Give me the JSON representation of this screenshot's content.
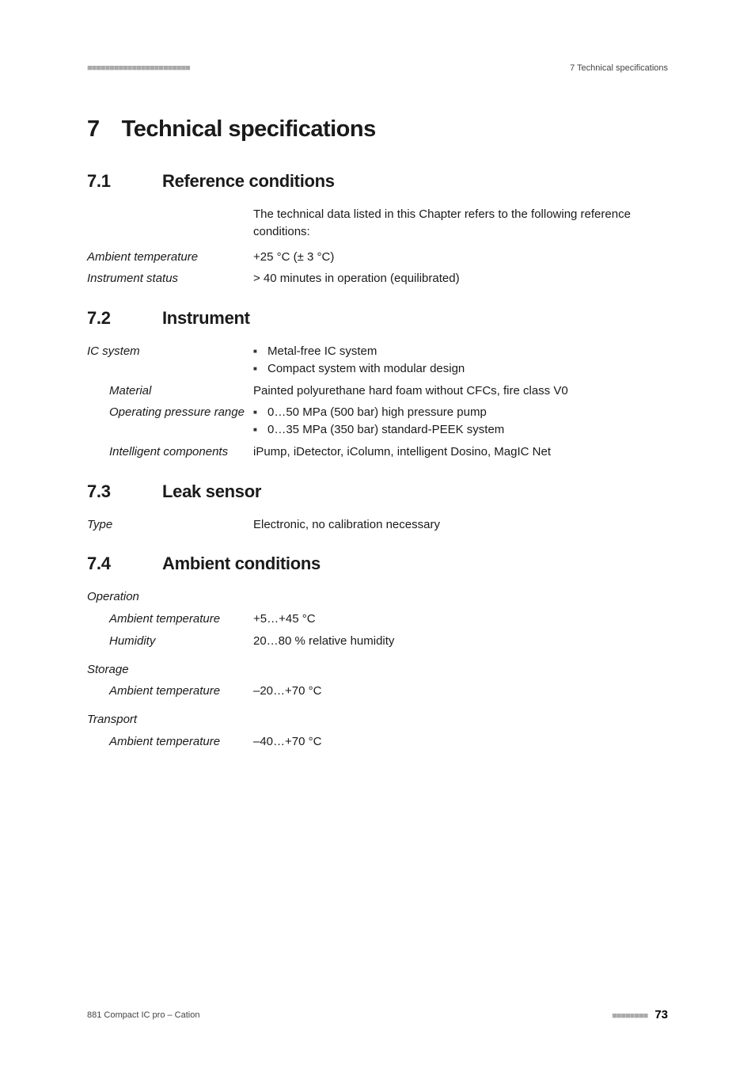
{
  "header": {
    "dots": "■■■■■■■■■■■■■■■■■■■■■■■",
    "right": "7 Technical specifications"
  },
  "chapter": {
    "num": "7",
    "title": "Technical specifications"
  },
  "sections": {
    "s1": {
      "num": "7.1",
      "title": "Reference conditions",
      "intro": "The technical data listed in this Chapter refers to the following reference conditions:",
      "rows": {
        "ambient_temp": {
          "label": "Ambient temperature",
          "value": "+25 °C (± 3 °C)"
        },
        "instr_status": {
          "label": "Instrument status",
          "value": "> 40 minutes in operation (equilibrated)"
        }
      }
    },
    "s2": {
      "num": "7.2",
      "title": "Instrument",
      "rows": {
        "ic_system": {
          "label": "IC system",
          "bullets": [
            "Metal-free IC system",
            "Compact system with modular design"
          ]
        },
        "material": {
          "label": "Material",
          "value": "Painted polyurethane hard foam without CFCs, fire class V0"
        },
        "op_pressure": {
          "label": "Operating pressure range",
          "bullets": [
            "0…50 MPa (500 bar) high pressure pump",
            "0…35 MPa (350 bar) standard-PEEK system"
          ]
        },
        "intelligent": {
          "label": "Intelligent components",
          "value": "iPump, iDetector, iColumn, intelligent Dosino, MagIC Net"
        }
      }
    },
    "s3": {
      "num": "7.3",
      "title": "Leak sensor",
      "rows": {
        "type": {
          "label": "Type",
          "value": "Electronic, no calibration necessary"
        }
      }
    },
    "s4": {
      "num": "7.4",
      "title": "Ambient conditions",
      "groups": {
        "operation": {
          "label": "Operation",
          "rows": {
            "amb_temp": {
              "label": "Ambient temperature",
              "value": "+5…+45 °C"
            },
            "humidity": {
              "label": "Humidity",
              "value": "20…80 % relative humidity"
            }
          }
        },
        "storage": {
          "label": "Storage",
          "rows": {
            "amb_temp": {
              "label": "Ambient temperature",
              "value": "–20…+70 °C"
            }
          }
        },
        "transport": {
          "label": "Transport",
          "rows": {
            "amb_temp": {
              "label": "Ambient temperature",
              "value": "–40…+70 °C"
            }
          }
        }
      }
    }
  },
  "footer": {
    "left": "881 Compact IC pro – Cation",
    "dots": "■■■■■■■■",
    "page": "73"
  }
}
